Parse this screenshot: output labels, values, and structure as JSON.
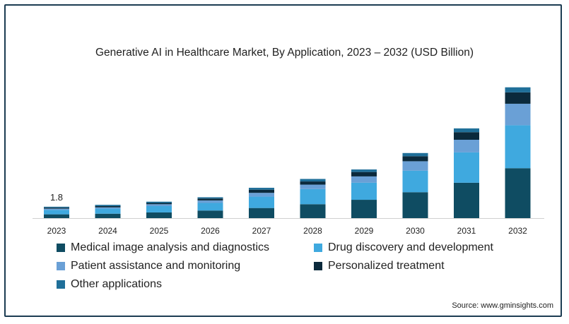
{
  "chart_data": {
    "type": "bar",
    "stacked": true,
    "title": "Generative AI in Healthcare Market, By Application, 2023 – 2032 (USD Billion)",
    "xlabel": "",
    "ylabel": "",
    "categories": [
      "2023",
      "2024",
      "2025",
      "2026",
      "2027",
      "2028",
      "2029",
      "2030",
      "2031",
      "2032"
    ],
    "annotation": {
      "category": "2023",
      "text": "1.8"
    },
    "ylim": [
      0,
      21
    ],
    "grid": false,
    "legend_position": "bottom",
    "series": [
      {
        "name": "Medical image analysis and diagnostics",
        "color": "#0f4c62",
        "values": [
          0.6,
          0.7,
          0.9,
          1.2,
          1.6,
          2.2,
          2.9,
          4.1,
          5.6,
          7.9
        ]
      },
      {
        "name": "Drug discovery and development",
        "color": "#3fa9df",
        "values": [
          0.7,
          0.8,
          1.0,
          1.2,
          1.8,
          2.4,
          2.7,
          3.4,
          4.8,
          6.8
        ]
      },
      {
        "name": "Patient assistance and monitoring",
        "color": "#6aa0d6",
        "values": [
          0.2,
          0.2,
          0.3,
          0.4,
          0.6,
          0.7,
          1.0,
          1.5,
          2.0,
          3.4
        ]
      },
      {
        "name": "Personalized treatment",
        "color": "#0b2a3c",
        "values": [
          0.15,
          0.2,
          0.2,
          0.3,
          0.5,
          0.5,
          0.7,
          0.8,
          1.2,
          1.8
        ]
      },
      {
        "name": "Other applications",
        "color": "#1f6f99",
        "values": [
          0.15,
          0.2,
          0.2,
          0.2,
          0.3,
          0.4,
          0.4,
          0.5,
          0.6,
          0.8
        ]
      }
    ]
  },
  "source": "Source: www.gminsights.com"
}
